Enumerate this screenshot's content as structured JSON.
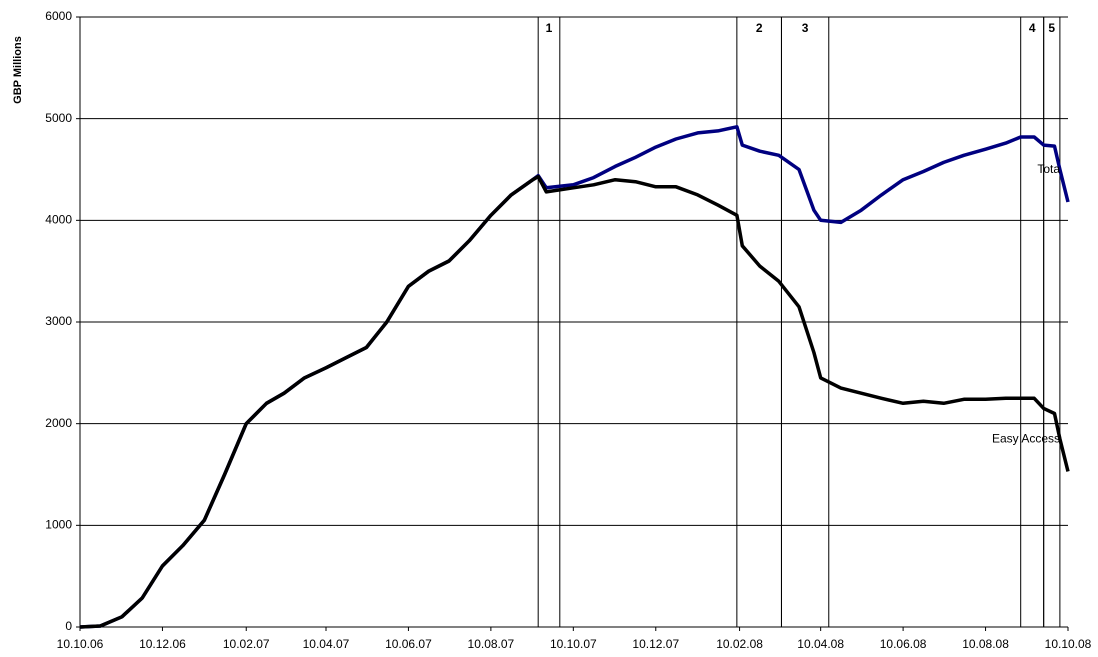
{
  "chart_data": {
    "type": "line",
    "y_label": "GBP Millions",
    "x": [
      "10.10.06",
      "25.10.06",
      "10.11.06",
      "25.11.06",
      "10.12.06",
      "25.12.06",
      "10.01.07",
      "25.01.07",
      "10.02.07",
      "25.02.07",
      "10.03.07",
      "25.03.07",
      "10.04.07",
      "25.04.07",
      "10.05.07",
      "25.05.07",
      "10.06.07",
      "25.06.07",
      "10.07.07",
      "25.07.07",
      "10.08.07",
      "25.08.07",
      "10.09.07",
      "14.09.07",
      "20.09.07",
      "10.10.07",
      "25.10.07",
      "10.11.07",
      "25.11.07",
      "10.12.07",
      "25.12.07",
      "10.01.08",
      "25.01.08",
      "08.02.08",
      "12.02.08",
      "25.02.08",
      "10.03.08",
      "25.03.08",
      "05.04.08",
      "10.04.08",
      "25.04.08",
      "10.05.08",
      "25.05.08",
      "10.06.08",
      "25.06.08",
      "10.07.08",
      "25.07.08",
      "10.08.08",
      "25.08.08",
      "05.09.08",
      "15.09.08",
      "22.09.08",
      "30.09.08",
      "04.10.08",
      "10.10.08"
    ],
    "series": [
      {
        "name": "Tota",
        "color": "#000080",
        "values": [
          0,
          10,
          100,
          285,
          600,
          800,
          1050,
          1500,
          2000,
          2200,
          2300,
          2450,
          2550,
          2650,
          2750,
          3000,
          3350,
          3500,
          3600,
          3800,
          4050,
          4250,
          4400,
          4440,
          4320,
          4350,
          4420,
          4530,
          4620,
          4720,
          4800,
          4860,
          4880,
          4920,
          4740,
          4680,
          4640,
          4500,
          4100,
          4000,
          3980,
          4100,
          4250,
          4400,
          4480,
          4570,
          4640,
          4700,
          4760,
          4820,
          4820,
          4740,
          4730,
          4500,
          4180
        ]
      },
      {
        "name": "Easy Access",
        "color": "#000000",
        "values": [
          0,
          10,
          100,
          285,
          600,
          800,
          1050,
          1500,
          2000,
          2200,
          2300,
          2450,
          2550,
          2650,
          2750,
          3000,
          3350,
          3500,
          3600,
          3800,
          4050,
          4250,
          4400,
          4430,
          4280,
          4320,
          4350,
          4400,
          4380,
          4330,
          4330,
          4250,
          4150,
          4050,
          3750,
          3550,
          3400,
          3150,
          2700,
          2450,
          2350,
          2300,
          2250,
          2200,
          2220,
          2200,
          2240,
          2240,
          2250,
          2250,
          2250,
          2150,
          2100,
          1850,
          1530
        ]
      }
    ],
    "periods": [
      {
        "label": "1",
        "start": "14.09.07",
        "end": "30.09.07"
      },
      {
        "label": "2",
        "start": "08.02.08",
        "end": "12.03.08"
      },
      {
        "label": "3",
        "start": "12.03.08",
        "end": "16.04.08"
      },
      {
        "label": "4",
        "start": "05.09.08",
        "end": "22.09.08"
      },
      {
        "label": "5",
        "start": "22.09.08",
        "end": "04.10.08"
      }
    ],
    "xlim": [
      "10.10.06",
      "10.10.08"
    ],
    "xticks": [
      "10.10.06",
      "10.12.06",
      "10.02.07",
      "10.04.07",
      "10.06.07",
      "10.08.07",
      "10.10.07",
      "10.12.07",
      "10.02.08",
      "10.04.08",
      "10.06.08",
      "10.08.08",
      "10.10.08"
    ],
    "ylim": [
      0,
      6000
    ],
    "yticks": [
      0,
      1000,
      2000,
      3000,
      4000,
      5000,
      6000
    ],
    "grid": true
  }
}
